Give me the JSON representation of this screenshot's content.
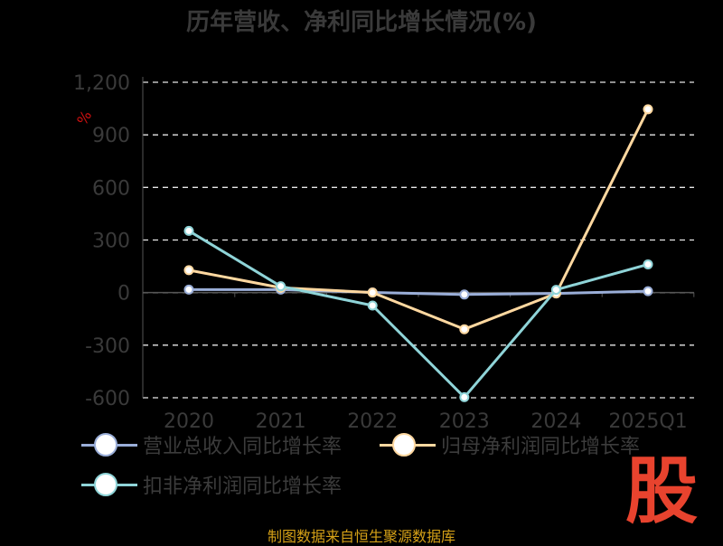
{
  "chart_data": {
    "type": "line",
    "title": "历年营收、净利同比增长情况(%)",
    "ylabel": "%",
    "categories": [
      "2020",
      "2021",
      "2022",
      "2023",
      "2024",
      "2025Q1"
    ],
    "ylim": [
      -600,
      1200
    ],
    "yticks": [
      -600,
      -300,
      0,
      300,
      600,
      900,
      1200
    ],
    "ytick_labels": [
      "-600",
      "-300",
      "0",
      "300",
      "600",
      "900",
      "1,200"
    ],
    "grid": true,
    "legend_position": "bottom",
    "series": [
      {
        "name": "营业总收入同比增长率",
        "color": "#9aaed8",
        "values": [
          17,
          17,
          1,
          -11,
          -5,
          8
        ]
      },
      {
        "name": "归母净利润同比增长率",
        "color": "#ffd8a0",
        "values": [
          128,
          28,
          0,
          -209,
          -5,
          1046
        ]
      },
      {
        "name": "扣非净利润同比增长率",
        "color": "#8fd4d8",
        "values": [
          352,
          36,
          -74,
          -597,
          16,
          161
        ]
      }
    ]
  },
  "source": "制图数据来自恒生聚源数据库",
  "logo_text": "股"
}
